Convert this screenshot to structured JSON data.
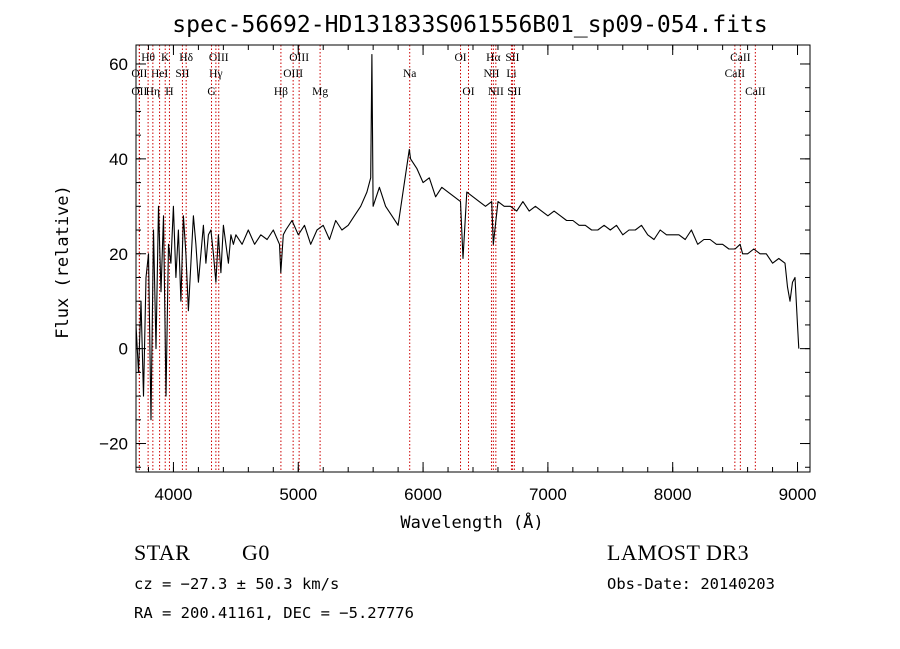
{
  "chart_data": {
    "type": "line",
    "title": "spec-56692-HD131833S061556B01_sp09-054.fits",
    "xlabel": "Wavelength (Å)",
    "ylabel": "Flux (relative)",
    "xlim": [
      3700,
      9100
    ],
    "ylim": [
      -26,
      64
    ],
    "xticks": [
      4000,
      5000,
      6000,
      7000,
      8000,
      9000
    ],
    "yticks": [
      -20,
      0,
      20,
      40,
      60
    ],
    "x_minor_step": 200,
    "y_minor_step": 5,
    "series": [
      {
        "name": "flux",
        "x": [
          3700,
          3720,
          3740,
          3760,
          3780,
          3800,
          3820,
          3840,
          3860,
          3880,
          3900,
          3920,
          3940,
          3960,
          3980,
          4000,
          4020,
          4040,
          4060,
          4080,
          4100,
          4120,
          4140,
          4160,
          4180,
          4200,
          4220,
          4240,
          4260,
          4280,
          4300,
          4320,
          4340,
          4360,
          4380,
          4400,
          4420,
          4440,
          4460,
          4480,
          4500,
          4550,
          4600,
          4650,
          4700,
          4750,
          4800,
          4850,
          4860,
          4880,
          4900,
          4950,
          5000,
          5050,
          5100,
          5150,
          5200,
          5250,
          5300,
          5350,
          5400,
          5450,
          5500,
          5550,
          5580,
          5590,
          5600,
          5650,
          5700,
          5750,
          5800,
          5850,
          5890,
          5900,
          5950,
          6000,
          6050,
          6100,
          6150,
          6200,
          6250,
          6300,
          6320,
          6350,
          6400,
          6450,
          6500,
          6550,
          6563,
          6600,
          6650,
          6700,
          6750,
          6800,
          6850,
          6900,
          6950,
          7000,
          7050,
          7100,
          7150,
          7200,
          7250,
          7300,
          7350,
          7400,
          7450,
          7500,
          7550,
          7600,
          7650,
          7700,
          7750,
          7800,
          7850,
          7900,
          7950,
          8000,
          8050,
          8100,
          8150,
          8200,
          8250,
          8300,
          8350,
          8400,
          8450,
          8500,
          8540,
          8560,
          8600,
          8650,
          8700,
          8750,
          8800,
          8850,
          8900,
          8920,
          8940,
          8960,
          8980,
          9000,
          9010
        ],
        "y": [
          5,
          -5,
          10,
          -10,
          15,
          20,
          -15,
          25,
          0,
          30,
          12,
          28,
          -10,
          22,
          18,
          30,
          15,
          25,
          10,
          28,
          20,
          8,
          18,
          28,
          22,
          14,
          20,
          26,
          18,
          24,
          25,
          20,
          14,
          24,
          16,
          26,
          22,
          18,
          24,
          22,
          24,
          22,
          25,
          22,
          24,
          23,
          25,
          22,
          16,
          24,
          25,
          27,
          24,
          26,
          22,
          25,
          26,
          23,
          27,
          25,
          26,
          28,
          30,
          33,
          36,
          62,
          30,
          34,
          30,
          28,
          26,
          35,
          42,
          40,
          38,
          35,
          36,
          32,
          34,
          33,
          32,
          31,
          19,
          33,
          32,
          31,
          30,
          31,
          22,
          31,
          30,
          30,
          29,
          31,
          29,
          30,
          29,
          28,
          29,
          28,
          27,
          27,
          26,
          26,
          25,
          25,
          26,
          25,
          26,
          24,
          25,
          25,
          26,
          24,
          23,
          25,
          24,
          24,
          24,
          23,
          25,
          22,
          23,
          23,
          22,
          22,
          21,
          21,
          22,
          20,
          20,
          21,
          20,
          20,
          18,
          19,
          18,
          13,
          10,
          14,
          15,
          5,
          0
        ]
      }
    ],
    "spectral_lines": [
      {
        "label": "Hθ",
        "x": 3797,
        "row": 1
      },
      {
        "label": "OII",
        "x": 3727,
        "row": 2
      },
      {
        "label": "OII",
        "x": 3727,
        "row": 3
      },
      {
        "label": "K",
        "x": 3934,
        "row": 1
      },
      {
        "label": "HeI",
        "x": 3889,
        "row": 2
      },
      {
        "label": "Hη",
        "x": 3835,
        "row": 3
      },
      {
        "label": "H",
        "x": 3968,
        "row": 3
      },
      {
        "label": "Hδ",
        "x": 4102,
        "row": 1
      },
      {
        "label": "SII",
        "x": 4072,
        "row": 2
      },
      {
        "label": "OIII",
        "x": 4363,
        "row": 1
      },
      {
        "label": "Hγ",
        "x": 4340,
        "row": 2
      },
      {
        "label": "G",
        "x": 4305,
        "row": 3
      },
      {
        "label": "Hβ",
        "x": 4861,
        "row": 3
      },
      {
        "label": "OIII",
        "x": 5007,
        "row": 1
      },
      {
        "label": "OIII",
        "x": 4959,
        "row": 2
      },
      {
        "label": "Mg",
        "x": 5175,
        "row": 3
      },
      {
        "label": "Na",
        "x": 5893,
        "row": 2
      },
      {
        "label": "OI",
        "x": 6300,
        "row": 1
      },
      {
        "label": "OI",
        "x": 6364,
        "row": 3
      },
      {
        "label": "Hα",
        "x": 6563,
        "row": 1
      },
      {
        "label": "SII",
        "x": 6716,
        "row": 1
      },
      {
        "label": "NII",
        "x": 6548,
        "row": 2
      },
      {
        "label": "Li",
        "x": 6708,
        "row": 2
      },
      {
        "label": "NII",
        "x": 6583,
        "row": 3
      },
      {
        "label": "SII",
        "x": 6731,
        "row": 3
      },
      {
        "label": "CaII",
        "x": 8542,
        "row": 1
      },
      {
        "label": "CaII",
        "x": 8498,
        "row": 2
      },
      {
        "label": "CaII",
        "x": 8662,
        "row": 3
      }
    ]
  },
  "info": {
    "object_type": "STAR",
    "subclass": "G0",
    "survey": "LAMOST DR3",
    "redshift": "cz = −27.3 ± 50.3 km/s",
    "obs_date": "Obs-Date: 20140203",
    "coords": "RA = 200.41161, DEC =  −5.27776"
  },
  "colors": {
    "line_marker": "#cc0000",
    "spectrum": "#000000"
  }
}
